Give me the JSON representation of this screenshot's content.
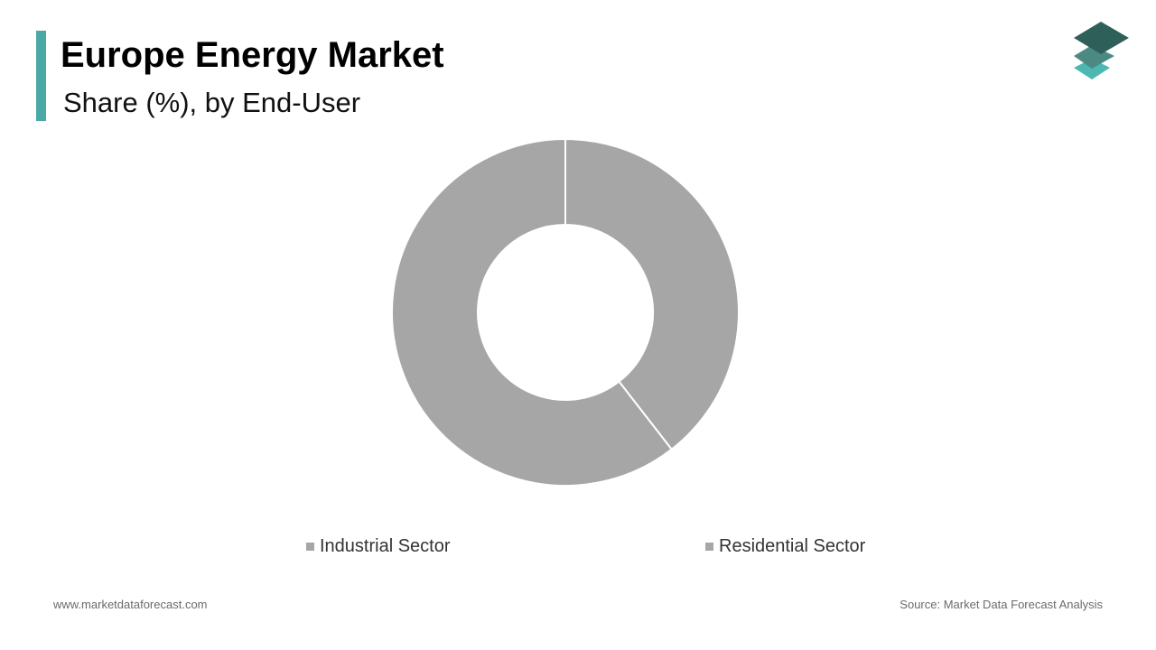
{
  "header": {
    "title": "Europe Energy Market",
    "subtitle": "Share (%), by End-User"
  },
  "colors": {
    "accent": "#4aa9a6",
    "slice": "#a6a6a6",
    "slice_border": "#ffffff",
    "logo_top": "#2e5f58",
    "logo_middle": "#4b8a83",
    "logo_bottom": "#4db7b3"
  },
  "logo": {
    "icon": "stacked-layers-icon"
  },
  "chart_data": {
    "type": "pie",
    "style": "donut",
    "title": "",
    "categories": [
      "Industrial Sector",
      "Residential Sector"
    ],
    "values": [
      39.5,
      60.5
    ],
    "unit": "%",
    "legend_position": "bottom",
    "grid": false
  },
  "footer": {
    "website": "www.marketdataforecast.com",
    "source": "Source: Market Data Forecast Analysis"
  }
}
